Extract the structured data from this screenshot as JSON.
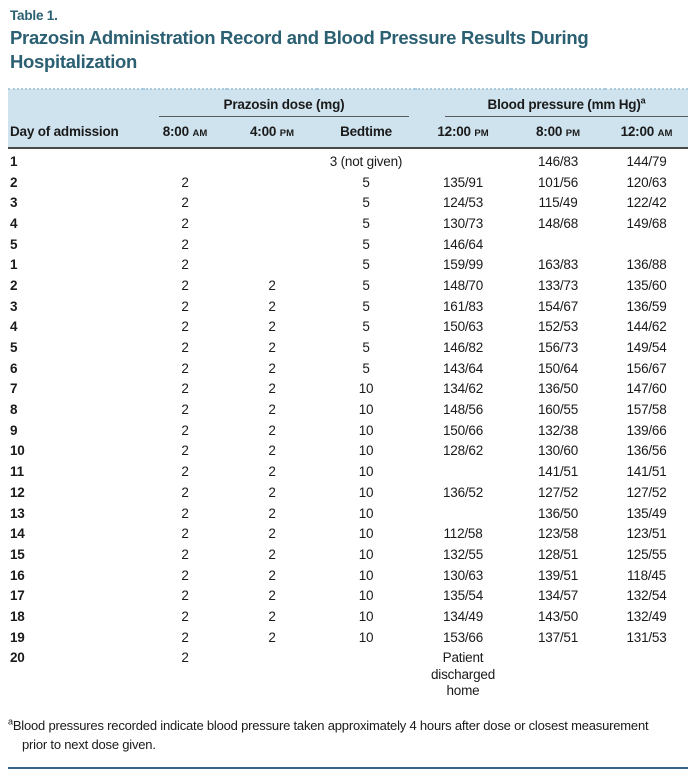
{
  "page": {
    "table_label": "Table 1.",
    "title": "Prazosin Administration Record and Blood Pressure Results During Hospitalization"
  },
  "table": {
    "group_headers": {
      "dose": "Prazosin dose (mg)",
      "bp": "Blood pressure (mm Hg)",
      "bp_sup": "a"
    },
    "row_header": "Day of admission",
    "time_columns": [
      {
        "label": "8:00",
        "period": "AM"
      },
      {
        "label": "4:00",
        "period": "PM"
      },
      {
        "label": "Bedtime",
        "period": ""
      },
      {
        "label": "12:00",
        "period": "PM"
      },
      {
        "label": "8:00",
        "period": "PM"
      },
      {
        "label": "12:00",
        "period": "AM"
      }
    ],
    "rows": [
      [
        "1",
        "",
        "",
        "3 (not given)",
        "",
        "146/83",
        "144/79"
      ],
      [
        "2",
        "2",
        "",
        "5",
        "135/91",
        "101/56",
        "120/63"
      ],
      [
        "3",
        "2",
        "",
        "5",
        "124/53",
        "115/49",
        "122/42"
      ],
      [
        "4",
        "2",
        "",
        "5",
        "130/73",
        "148/68",
        "149/68"
      ],
      [
        "5",
        "2",
        "",
        "5",
        "146/64",
        "",
        ""
      ],
      [
        "1",
        "2",
        "",
        "5",
        "159/99",
        "163/83",
        "136/88"
      ],
      [
        "2",
        "2",
        "2",
        "5",
        "148/70",
        "133/73",
        "135/60"
      ],
      [
        "3",
        "2",
        "2",
        "5",
        "161/83",
        "154/67",
        "136/59"
      ],
      [
        "4",
        "2",
        "2",
        "5",
        "150/63",
        "152/53",
        "144/62"
      ],
      [
        "5",
        "2",
        "2",
        "5",
        "146/82",
        "156/73",
        "149/54"
      ],
      [
        "6",
        "2",
        "2",
        "5",
        "143/64",
        "150/64",
        "156/67"
      ],
      [
        "7",
        "2",
        "2",
        "10",
        "134/62",
        "136/50",
        "147/60"
      ],
      [
        "8",
        "2",
        "2",
        "10",
        "148/56",
        "160/55",
        "157/58"
      ],
      [
        "9",
        "2",
        "2",
        "10",
        "150/66",
        "132/38",
        "139/66"
      ],
      [
        "10",
        "2",
        "2",
        "10",
        "128/62",
        "130/60",
        "136/56"
      ],
      [
        "11",
        "2",
        "2",
        "10",
        "",
        "141/51",
        "141/51"
      ],
      [
        "12",
        "2",
        "2",
        "10",
        "136/52",
        "127/52",
        "127/52"
      ],
      [
        "13",
        "2",
        "2",
        "10",
        "",
        "136/50",
        "135/49"
      ],
      [
        "14",
        "2",
        "2",
        "10",
        "112/58",
        "123/58",
        "123/51"
      ],
      [
        "15",
        "2",
        "2",
        "10",
        "132/55",
        "128/51",
        "125/55"
      ],
      [
        "16",
        "2",
        "2",
        "10",
        "130/63",
        "139/51",
        "118/45"
      ],
      [
        "17",
        "2",
        "2",
        "10",
        "135/54",
        "134/57",
        "132/54"
      ],
      [
        "18",
        "2",
        "2",
        "10",
        "134/49",
        "143/50",
        "132/49"
      ],
      [
        "19",
        "2",
        "2",
        "10",
        "153/66",
        "137/51",
        "131/53"
      ],
      [
        "20",
        "2",
        "",
        "",
        "Patient discharged\nhome",
        "",
        ""
      ]
    ]
  },
  "footnote": {
    "sup": "a",
    "text": "Blood pressures recorded indicate blood pressure taken approximately 4 hours after dose or closest measurement prior to next dose given."
  },
  "colors": {
    "accent_teal": "#2b5f72",
    "header_bg": "#cfe3ef",
    "heavy_rule": "#4a4a4a",
    "bottom_rule": "#35648c"
  }
}
